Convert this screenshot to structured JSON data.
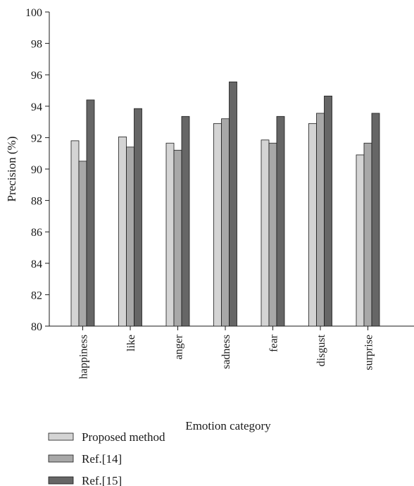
{
  "chart_data": {
    "type": "bar",
    "categories": [
      "happiness",
      "like",
      "anger",
      "sadness",
      "fear",
      "disgust",
      "surprise"
    ],
    "series": [
      {
        "name": "Proposed method",
        "color": "#d4d4d4",
        "values": [
          91.8,
          92.05,
          91.65,
          92.9,
          91.85,
          92.9,
          90.9
        ]
      },
      {
        "name": "Ref.[14]",
        "color": "#a8a8a8",
        "values": [
          90.5,
          91.4,
          91.2,
          93.2,
          91.65,
          93.55,
          91.65
        ]
      },
      {
        "name": "Ref.[15]",
        "color": "#666666",
        "values": [
          94.4,
          93.85,
          93.35,
          95.55,
          93.35,
          94.65,
          93.55
        ]
      }
    ],
    "ylim": [
      80,
      100
    ],
    "yticks": [
      "80",
      "82",
      "84",
      "86",
      "88",
      "90",
      "92",
      "94",
      "96",
      "98",
      "100"
    ],
    "xlabel": "Emotion category",
    "ylabel": "Precision (%)",
    "grid": false,
    "legend_position": "bottom-left"
  }
}
